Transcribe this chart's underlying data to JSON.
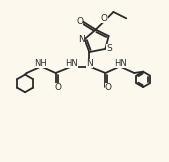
{
  "background_color": "#fdf8ee",
  "line_color": "#2a2a2a",
  "line_width": 1.3,
  "figsize": [
    1.69,
    1.62
  ],
  "dpi": 100,
  "xlim": [
    0,
    10
  ],
  "ylim": [
    0,
    10
  ]
}
